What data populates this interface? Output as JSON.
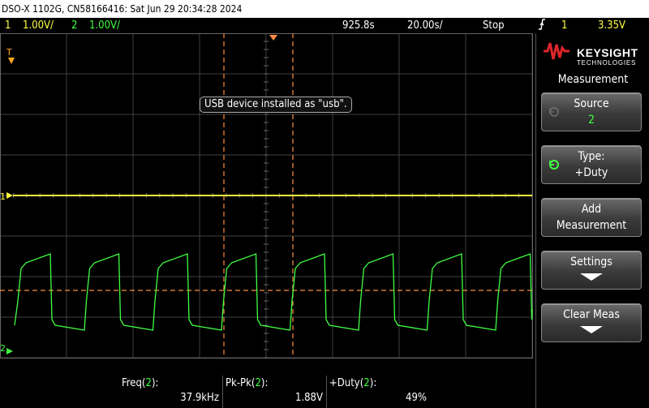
{
  "title_bar": "DSO-X 1102G, CN58166416: Sat Jun 29 20:34:28 2024",
  "status": {
    "ch1_num": "1",
    "ch1_scale": "1.00V/",
    "ch2_num": "2",
    "ch2_scale": "1.00V/",
    "time_pos": "925.8s",
    "time_scale": "20.00s/",
    "run_state": "Stop",
    "trigger_icon": "trigger-edge-icon",
    "trigger_channel": "1",
    "trigger_level": "3.35V"
  },
  "tooltip": "USB device installed as \"usb\".",
  "markers": {
    "trigger_time": "T",
    "ch1_ground": "1",
    "ch2_ground": "2"
  },
  "panel": {
    "brand_name": "KEYSIGHT",
    "brand_sub": "TECHNOLOGIES",
    "title": "Measurement",
    "softkeys": [
      {
        "line1": "Source",
        "line2": "2"
      },
      {
        "line1": "Type:",
        "line2": "+Duty"
      },
      {
        "line1": "Add",
        "line2": "Measurement"
      },
      {
        "line1": "Settings",
        "line2": ""
      },
      {
        "line1": "Clear Meas",
        "line2": ""
      }
    ]
  },
  "measurements": [
    {
      "label_name": "Freq(",
      "label_ch": "2",
      "label_end": "):",
      "value": "37.9kHz"
    },
    {
      "label_name": "Pk-Pk(",
      "label_ch": "2",
      "label_end": "):",
      "value": "1.88V"
    },
    {
      "label_name": "+Duty(",
      "label_ch": "2",
      "label_end": "):",
      "value": "49%"
    }
  ],
  "colors": {
    "ch1": "#ffff40",
    "ch2": "#40ff40",
    "cursor": "#ff8c40",
    "grid": "#404040"
  }
}
